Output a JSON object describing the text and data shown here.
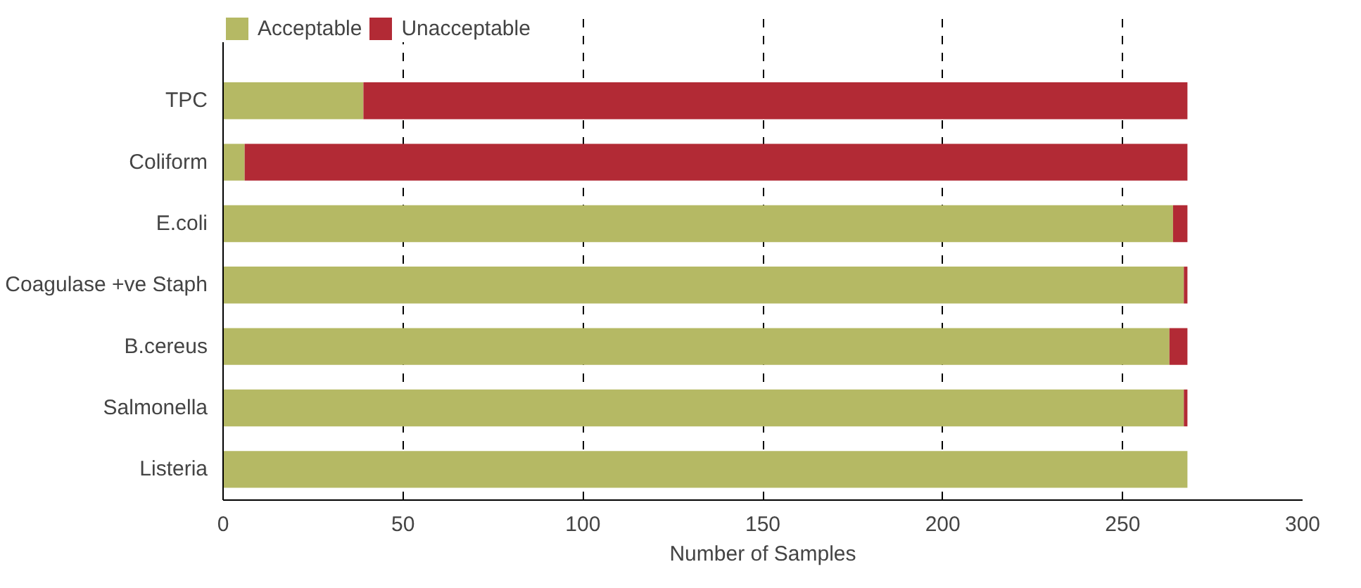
{
  "chart_data": {
    "type": "bar",
    "orientation": "horizontal",
    "stacked": true,
    "xlabel": "Number of Samples",
    "categories": [
      "TPC",
      "Coliform",
      "E.coli",
      "Coagulase +ve Staph",
      "B.cereus",
      "Salmonella",
      "Listeria"
    ],
    "series": [
      {
        "name": "Acceptable",
        "color": "#b5b964",
        "values": [
          39,
          6,
          264,
          267,
          263,
          267,
          268
        ]
      },
      {
        "name": "Unacceptable",
        "color": "#b22a35",
        "values": [
          229,
          262,
          4,
          1,
          5,
          1,
          0
        ]
      }
    ],
    "xlim": [
      0,
      300
    ],
    "xticks": [
      0,
      50,
      100,
      150,
      200,
      250,
      300
    ],
    "grid": "x",
    "legend": "top left"
  }
}
